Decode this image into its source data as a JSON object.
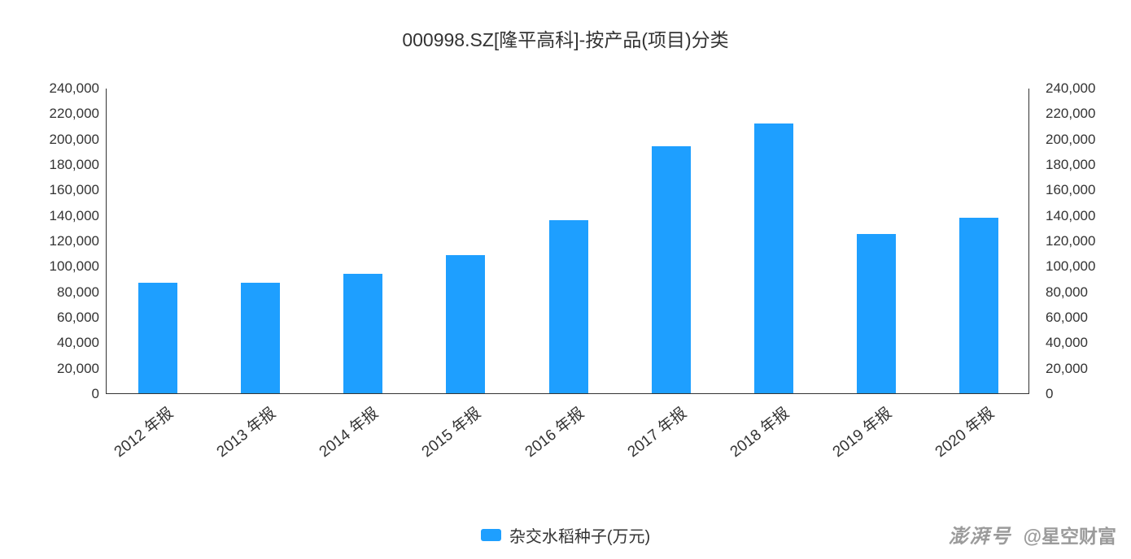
{
  "title": "000998.SZ[隆平高科]-按产品(项目)分类",
  "chart_data": {
    "type": "bar",
    "title": "000998.SZ[隆平高科]-按产品(项目)分类",
    "categories": [
      "2012 年报",
      "2013 年报",
      "2014 年报",
      "2015 年报",
      "2016 年报",
      "2017 年报",
      "2018 年报",
      "2019 年报",
      "2020 年报"
    ],
    "series": [
      {
        "name": "杂交水稻种子(万元)",
        "values": [
          87000,
          86500,
          94000,
          108500,
          136000,
          194000,
          212000,
          125000,
          138000
        ]
      }
    ],
    "xlabel": "",
    "ylabel": "",
    "ylim": [
      0,
      240000
    ],
    "ytick_step": 20000,
    "y_axis_right_mirror": true,
    "grid": false,
    "bar_color": "#1E9FFF",
    "legend_position": "bottom"
  },
  "legend": {
    "label": "杂交水稻种子(万元)"
  },
  "watermark": {
    "brand": "澎湃号",
    "handle": "@星空财富"
  }
}
